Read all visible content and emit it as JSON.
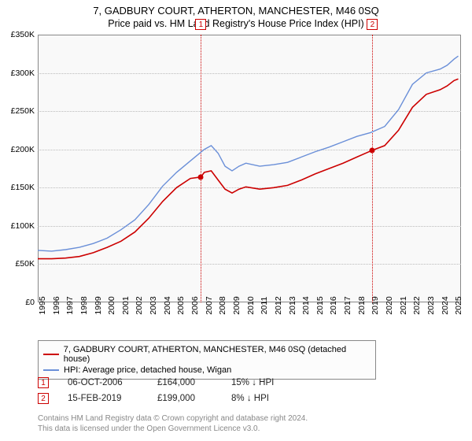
{
  "title": "7, GADBURY COURT, ATHERTON, MANCHESTER, M46 0SQ",
  "subtitle": "Price paid vs. HM Land Registry's House Price Index (HPI)",
  "chart": {
    "type": "line",
    "background_color": "#f9f9f9",
    "grid_color": "#bbbbbb",
    "border_color": "#888888",
    "x": {
      "min": 1995,
      "max": 2025.5,
      "ticks": [
        1995,
        1996,
        1997,
        1998,
        1999,
        2000,
        2001,
        2002,
        2003,
        2004,
        2005,
        2006,
        2007,
        2008,
        2009,
        2010,
        2011,
        2012,
        2013,
        2014,
        2015,
        2016,
        2017,
        2018,
        2019,
        2020,
        2021,
        2022,
        2023,
        2024,
        2025
      ],
      "label_fontsize": 10.5,
      "rotation": -90
    },
    "y": {
      "min": 0,
      "max": 350000,
      "ticks": [
        0,
        50000,
        100000,
        150000,
        200000,
        250000,
        300000,
        350000
      ],
      "tick_labels": [
        "£0",
        "£50K",
        "£100K",
        "£150K",
        "£200K",
        "£250K",
        "£300K",
        "£350K"
      ],
      "label_fontsize": 10.5
    },
    "series": [
      {
        "name": "7, GADBURY COURT, ATHERTON, MANCHESTER, M46 0SQ (detached house)",
        "color": "#cc0000",
        "line_width": 1.6,
        "points": [
          [
            1995,
            57000
          ],
          [
            1996,
            57000
          ],
          [
            1997,
            58000
          ],
          [
            1998,
            60000
          ],
          [
            1999,
            65000
          ],
          [
            2000,
            72000
          ],
          [
            2001,
            80000
          ],
          [
            2002,
            92000
          ],
          [
            2003,
            110000
          ],
          [
            2004,
            132000
          ],
          [
            2005,
            150000
          ],
          [
            2006,
            162000
          ],
          [
            2006.76,
            164000
          ],
          [
            2007,
            170000
          ],
          [
            2007.5,
            172000
          ],
          [
            2008,
            160000
          ],
          [
            2008.5,
            148000
          ],
          [
            2009,
            143000
          ],
          [
            2009.5,
            148000
          ],
          [
            2010,
            151000
          ],
          [
            2011,
            148000
          ],
          [
            2012,
            150000
          ],
          [
            2013,
            153000
          ],
          [
            2014,
            160000
          ],
          [
            2015,
            168000
          ],
          [
            2016,
            175000
          ],
          [
            2017,
            182000
          ],
          [
            2018,
            190000
          ],
          [
            2019,
            198000
          ],
          [
            2019.12,
            199000
          ],
          [
            2020,
            205000
          ],
          [
            2021,
            225000
          ],
          [
            2022,
            255000
          ],
          [
            2023,
            272000
          ],
          [
            2024,
            278000
          ],
          [
            2024.5,
            283000
          ],
          [
            2025,
            290000
          ],
          [
            2025.3,
            292000
          ]
        ]
      },
      {
        "name": "HPI: Average price, detached house, Wigan",
        "color": "#6a8fd8",
        "line_width": 1.4,
        "points": [
          [
            1995,
            68000
          ],
          [
            1996,
            67000
          ],
          [
            1997,
            69000
          ],
          [
            1998,
            72000
          ],
          [
            1999,
            77000
          ],
          [
            2000,
            84000
          ],
          [
            2001,
            95000
          ],
          [
            2002,
            108000
          ],
          [
            2003,
            128000
          ],
          [
            2004,
            152000
          ],
          [
            2005,
            170000
          ],
          [
            2006,
            185000
          ],
          [
            2007,
            200000
          ],
          [
            2007.5,
            205000
          ],
          [
            2008,
            195000
          ],
          [
            2008.5,
            178000
          ],
          [
            2009,
            172000
          ],
          [
            2009.5,
            178000
          ],
          [
            2010,
            182000
          ],
          [
            2011,
            178000
          ],
          [
            2012,
            180000
          ],
          [
            2013,
            183000
          ],
          [
            2014,
            190000
          ],
          [
            2015,
            197000
          ],
          [
            2016,
            203000
          ],
          [
            2017,
            210000
          ],
          [
            2018,
            217000
          ],
          [
            2019,
            222000
          ],
          [
            2020,
            230000
          ],
          [
            2021,
            252000
          ],
          [
            2022,
            285000
          ],
          [
            2023,
            300000
          ],
          [
            2024,
            305000
          ],
          [
            2024.5,
            310000
          ],
          [
            2025,
            318000
          ],
          [
            2025.3,
            322000
          ]
        ]
      }
    ],
    "sale_markers": [
      {
        "id": "1",
        "year": 2006.76,
        "price": 164000
      },
      {
        "id": "2",
        "year": 2019.12,
        "price": 199000
      }
    ],
    "vline_color": "#cc0000"
  },
  "legend": {
    "border_color": "#888888",
    "bg_color": "#fcfcfc",
    "items": [
      {
        "color": "#cc0000",
        "label": "7, GADBURY COURT, ATHERTON, MANCHESTER, M46 0SQ (detached house)"
      },
      {
        "color": "#6a8fd8",
        "label": "HPI: Average price, detached house, Wigan"
      }
    ]
  },
  "sales": [
    {
      "marker": "1",
      "date": "06-OCT-2006",
      "price": "£164,000",
      "delta": "15% ↓ HPI"
    },
    {
      "marker": "2",
      "date": "15-FEB-2019",
      "price": "£199,000",
      "delta": "8% ↓ HPI"
    }
  ],
  "footer": {
    "line1": "Contains HM Land Registry data © Crown copyright and database right 2024.",
    "line2": "This data is licensed under the Open Government Licence v3.0."
  }
}
